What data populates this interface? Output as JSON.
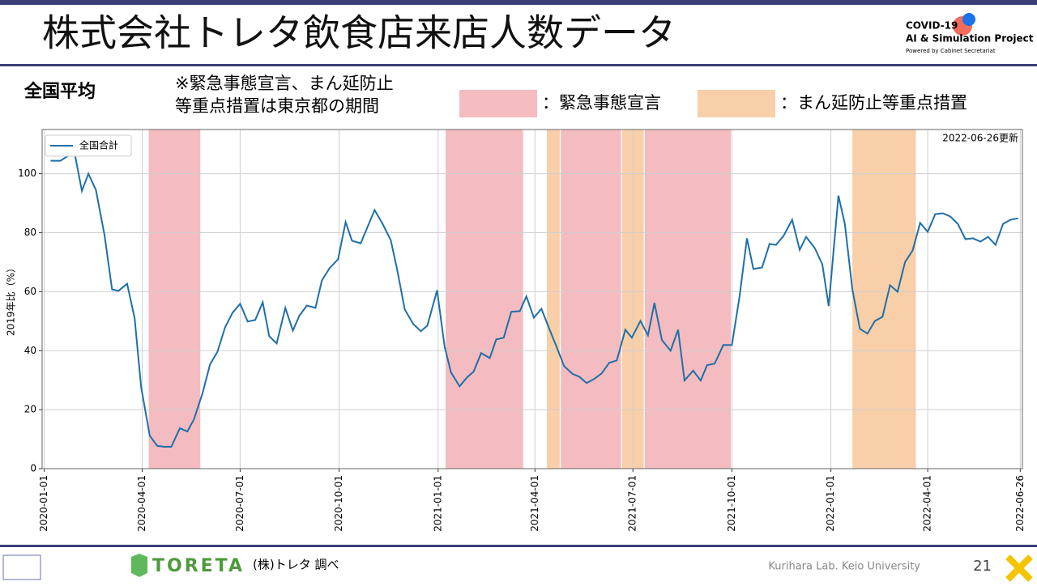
{
  "header": {
    "title": "株式会社トレタ飲食店来店人数データ",
    "logo": [
      "COVID-19",
      "AI & Simulation Project",
      "Powered by Cabinet Secretariat"
    ]
  },
  "section": "全国平均",
  "note": [
    "※緊急事態宣言、まん延防止",
    "等重点措置は東京都の期間"
  ],
  "chart_data": {
    "type": "line",
    "ylabel": "2019年比（%）",
    "annotation": "2022-06-26更新",
    "grid": true,
    "legend": "upper left",
    "xlim": [
      "2019-12-30",
      "2022-06-28"
    ],
    "xticks": [
      "2020-01-01",
      "2020-04-01",
      "2020-07-01",
      "2020-10-01",
      "2021-01-01",
      "2021-04-01",
      "2021-07-01",
      "2021-10-01",
      "2022-01-01",
      "2022-04-01",
      "2022-06-26"
    ],
    "ylim": [
      0,
      115
    ],
    "yticks": [
      0,
      20,
      40,
      60,
      80,
      100
    ],
    "periods": [
      {
        "name": "：緊急事態宣言",
        "color": "#f4bcc0",
        "ranges": [
          [
            "2020-04-07",
            "2020-05-25"
          ],
          [
            "2021-01-08",
            "2021-03-21"
          ],
          [
            "2021-04-25",
            "2021-06-20"
          ],
          [
            "2021-07-12",
            "2021-09-30"
          ]
        ]
      },
      {
        "name": "：まん延防止等重点措置",
        "color": "#f8cfa8",
        "ranges": [
          [
            "2021-04-12",
            "2021-04-24"
          ],
          [
            "2021-06-21",
            "2021-07-11"
          ],
          [
            "2022-01-21",
            "2022-03-21"
          ]
        ]
      }
    ],
    "x": [
      "2020-01-07",
      "2020-01-16",
      "2020-01-22",
      "2020-01-29",
      "2020-02-05",
      "2020-02-11",
      "2020-02-18",
      "2020-02-26",
      "2020-03-04",
      "2020-03-10",
      "2020-03-18",
      "2020-03-25",
      "2020-03-31",
      "2020-04-08",
      "2020-04-15",
      "2020-04-22",
      "2020-04-28",
      "2020-05-06",
      "2020-05-13",
      "2020-05-19",
      "2020-05-27",
      "2020-06-03",
      "2020-06-10",
      "2020-06-17",
      "2020-06-24",
      "2020-07-01",
      "2020-07-08",
      "2020-07-15",
      "2020-07-22",
      "2020-07-28",
      "2020-08-04",
      "2020-08-12",
      "2020-08-19",
      "2020-08-25",
      "2020-09-01",
      "2020-09-09",
      "2020-09-15",
      "2020-09-22",
      "2020-09-30",
      "2020-10-07",
      "2020-10-13",
      "2020-10-21",
      "2020-10-27",
      "2020-11-03",
      "2020-11-10",
      "2020-11-18",
      "2020-11-24",
      "2020-12-01",
      "2020-12-09",
      "2020-12-16",
      "2020-12-22",
      "2020-12-31",
      "2021-01-07",
      "2021-01-13",
      "2021-01-21",
      "2021-01-28",
      "2021-02-03",
      "2021-02-10",
      "2021-02-18",
      "2021-02-24",
      "2021-03-03",
      "2021-03-10",
      "2021-03-18",
      "2021-03-24",
      "2021-03-31",
      "2021-04-07",
      "2021-04-14",
      "2021-04-21",
      "2021-04-28",
      "2021-05-06",
      "2021-05-12",
      "2021-05-19",
      "2021-05-26",
      "2021-06-02",
      "2021-06-09",
      "2021-06-16",
      "2021-06-24",
      "2021-06-30",
      "2021-07-08",
      "2021-07-15",
      "2021-07-21",
      "2021-07-28",
      "2021-08-05",
      "2021-08-12",
      "2021-08-18",
      "2021-08-26",
      "2021-09-02",
      "2021-09-08",
      "2021-09-15",
      "2021-09-23",
      "2021-10-01",
      "2021-10-08",
      "2021-10-15",
      "2021-10-21",
      "2021-10-29",
      "2021-11-05",
      "2021-11-11",
      "2021-11-18",
      "2021-11-26",
      "2021-12-03",
      "2021-12-09",
      "2021-12-17",
      "2021-12-24",
      "2021-12-30",
      "2022-01-08",
      "2022-01-14",
      "2022-01-21",
      "2022-01-28",
      "2022-02-04",
      "2022-02-11",
      "2022-02-18",
      "2022-02-25",
      "2022-03-04",
      "2022-03-11",
      "2022-03-18",
      "2022-03-25",
      "2022-04-01",
      "2022-04-08",
      "2022-04-15",
      "2022-04-22",
      "2022-04-29",
      "2022-05-06",
      "2022-05-13",
      "2022-05-20",
      "2022-05-27",
      "2022-06-03",
      "2022-06-10",
      "2022-06-17",
      "2022-06-24"
    ],
    "series": [
      {
        "name": "全国合計",
        "color": "#1f6fa8",
        "values": [
          104.4,
          104.4,
          105.8,
          107.4,
          94.2,
          100,
          94.5,
          79.2,
          60.8,
          60.3,
          62.7,
          51,
          27.7,
          11.2,
          7.7,
          7.4,
          7.4,
          13.7,
          12.6,
          16.7,
          25.5,
          35.3,
          39.7,
          47.9,
          52.9,
          55.9,
          49.9,
          50.4,
          56.4,
          44.9,
          42.5,
          54.5,
          46.8,
          51.8,
          55.3,
          54.5,
          63.8,
          67.9,
          71,
          83.6,
          77.3,
          76.4,
          81.6,
          87.7,
          83.3,
          77.5,
          67.4,
          54,
          49,
          46.6,
          48.5,
          60.5,
          41.4,
          32.6,
          27.9,
          31,
          32.9,
          39.2,
          37.5,
          43.8,
          44.4,
          53.2,
          53.4,
          58.4,
          51.2,
          54.2,
          47.7,
          41.4,
          34.8,
          32.1,
          31.2,
          29,
          30.4,
          32.3,
          35.9,
          36.7,
          47.1,
          44.4,
          50.1,
          45.2,
          56.2,
          43.6,
          40,
          47.1,
          29.9,
          33.2,
          29.9,
          35.1,
          35.6,
          41.9,
          41.9,
          58.1,
          78.1,
          67.7,
          68.2,
          76.2,
          75.9,
          78.9,
          84.4,
          74.2,
          78.6,
          74.8,
          69.3,
          55.1,
          92.6,
          83,
          60.8,
          47.4,
          45.8,
          50.1,
          51.5,
          62.2,
          60,
          70.1,
          74,
          83.3,
          80.3,
          86.3,
          86.6,
          85.5,
          83,
          77.8,
          78.1,
          77,
          78.6,
          75.9,
          83,
          84.4,
          84.9
        ]
      }
    ]
  },
  "footer": {
    "brand": "TORETA",
    "source": "(株)トレタ 調べ",
    "lab": "Kurihara Lab. Keio University",
    "page": "21"
  }
}
